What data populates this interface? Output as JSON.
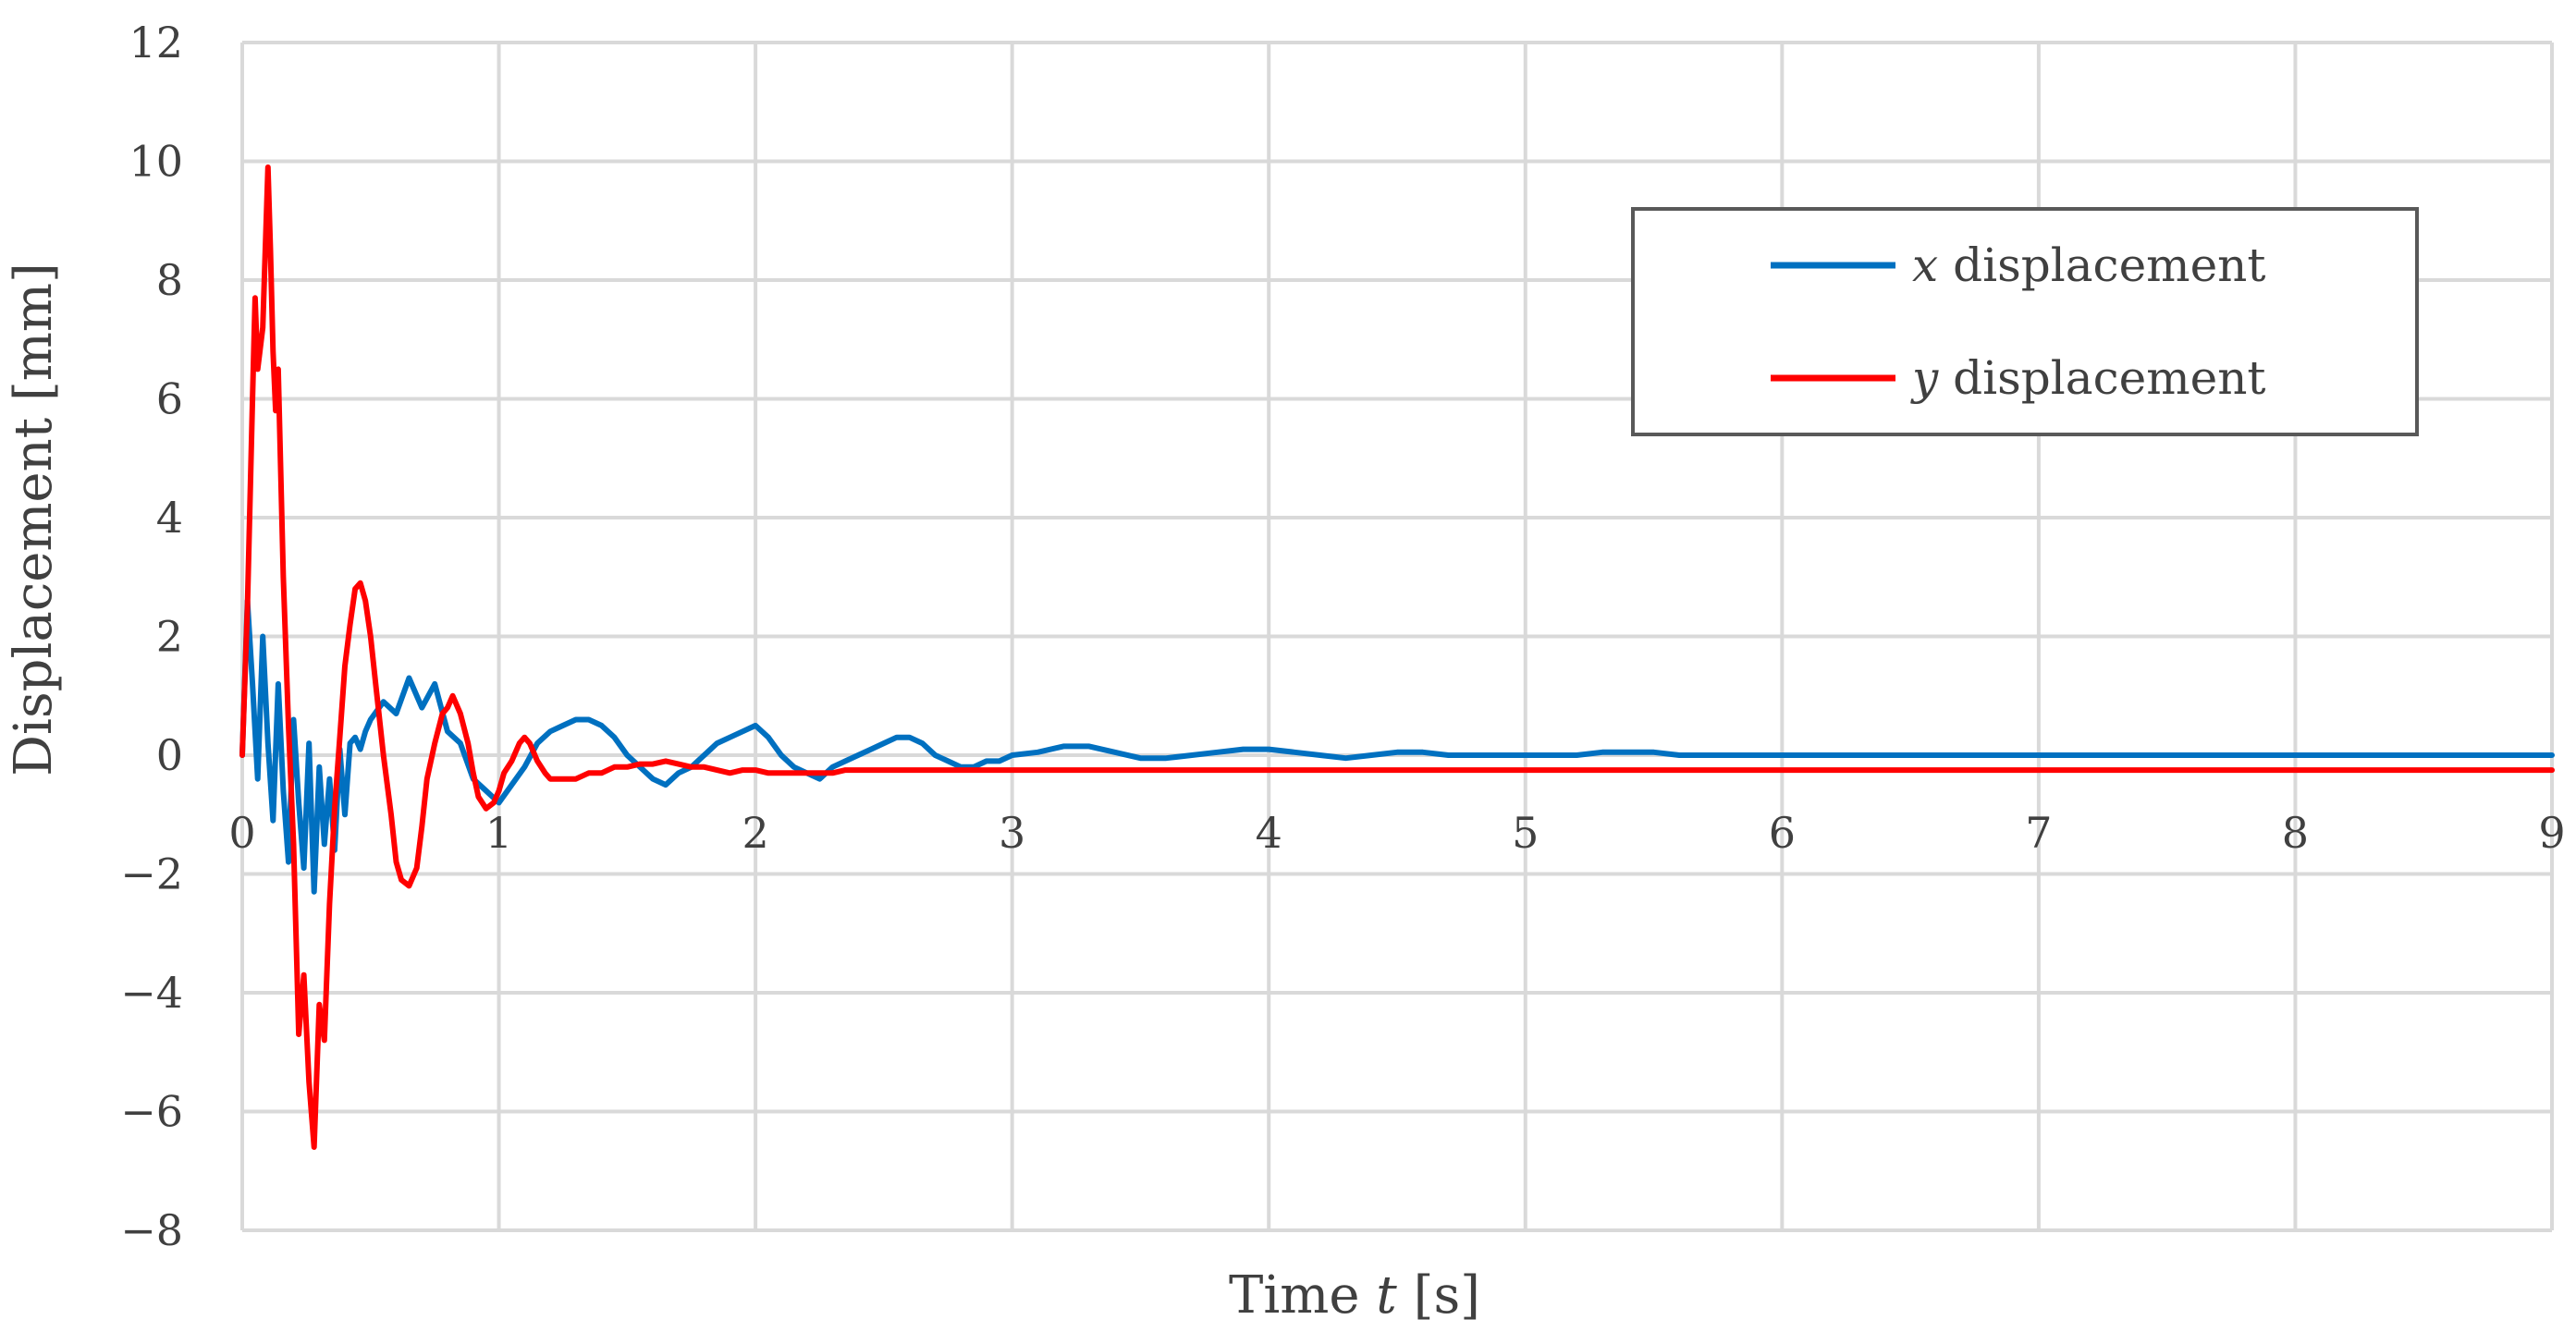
{
  "chart_data": {
    "type": "line",
    "xlabel": {
      "prefix": "Time ",
      "italic": "t",
      "suffix": " [s]"
    },
    "ylabel": "Displacement [mm]",
    "xlim": [
      0,
      9
    ],
    "ylim": [
      -8,
      12
    ],
    "x_ticks": [
      0,
      1,
      2,
      3,
      4,
      5,
      6,
      7,
      8,
      9
    ],
    "x_tick_labels": [
      "0",
      "1",
      "2",
      "3",
      "4",
      "5",
      "6",
      "7",
      "8",
      "9"
    ],
    "y_ticks": [
      -8,
      -6,
      -4,
      -2,
      0,
      2,
      4,
      6,
      8,
      10,
      12
    ],
    "y_tick_labels": [
      "−8",
      "−6",
      "−4",
      "−2",
      "0",
      "2",
      "4",
      "6",
      "8",
      "10",
      "12"
    ],
    "grid": true,
    "legend_position": "top-right",
    "series": [
      {
        "name": "x displacement",
        "name_italic": "x",
        "name_suffix": " displacement",
        "color": "#0070c0",
        "x": [
          0,
          0.02,
          0.04,
          0.06,
          0.08,
          0.1,
          0.12,
          0.14,
          0.16,
          0.18,
          0.2,
          0.22,
          0.24,
          0.26,
          0.28,
          0.3,
          0.32,
          0.34,
          0.36,
          0.38,
          0.4,
          0.42,
          0.44,
          0.46,
          0.48,
          0.5,
          0.55,
          0.6,
          0.65,
          0.7,
          0.75,
          0.8,
          0.85,
          0.9,
          0.95,
          1.0,
          1.05,
          1.1,
          1.15,
          1.2,
          1.25,
          1.3,
          1.35,
          1.4,
          1.45,
          1.5,
          1.55,
          1.6,
          1.65,
          1.7,
          1.75,
          1.8,
          1.85,
          1.9,
          1.95,
          2.0,
          2.05,
          2.1,
          2.15,
          2.2,
          2.25,
          2.3,
          2.35,
          2.4,
          2.45,
          2.5,
          2.55,
          2.6,
          2.65,
          2.7,
          2.75,
          2.8,
          2.85,
          2.9,
          2.95,
          3.0,
          3.1,
          3.2,
          3.3,
          3.4,
          3.5,
          3.6,
          3.7,
          3.8,
          3.9,
          4.0,
          4.1,
          4.2,
          4.3,
          4.4,
          4.5,
          4.6,
          4.7,
          4.8,
          4.9,
          5.0,
          5.1,
          5.2,
          5.3,
          5.4,
          5.5,
          5.6,
          5.7,
          5.8,
          5.9,
          6.0,
          6.5,
          7.0,
          7.5,
          8.0,
          8.5,
          9.0
        ],
        "y": [
          0,
          2.6,
          1.2,
          -0.4,
          2.0,
          0.2,
          -1.1,
          1.2,
          -0.6,
          -1.8,
          0.6,
          -0.8,
          -1.9,
          0.2,
          -2.3,
          -0.2,
          -1.5,
          -0.4,
          -1.6,
          0.1,
          -1.0,
          0.2,
          0.3,
          0.1,
          0.4,
          0.6,
          0.9,
          0.7,
          1.3,
          0.8,
          1.2,
          0.4,
          0.2,
          -0.4,
          -0.6,
          -0.8,
          -0.5,
          -0.2,
          0.2,
          0.4,
          0.5,
          0.6,
          0.6,
          0.5,
          0.3,
          0.0,
          -0.2,
          -0.4,
          -0.5,
          -0.3,
          -0.2,
          0.0,
          0.2,
          0.3,
          0.4,
          0.5,
          0.3,
          0.0,
          -0.2,
          -0.3,
          -0.4,
          -0.2,
          -0.1,
          0.0,
          0.1,
          0.2,
          0.3,
          0.3,
          0.2,
          0.0,
          -0.1,
          -0.2,
          -0.2,
          -0.1,
          -0.1,
          0.0,
          0.05,
          0.15,
          0.15,
          0.05,
          -0.05,
          -0.05,
          0.0,
          0.05,
          0.1,
          0.1,
          0.05,
          0.0,
          -0.05,
          0.0,
          0.05,
          0.05,
          0.0,
          0.0,
          0.0,
          0.0,
          0.0,
          0.0,
          0.05,
          0.05,
          0.05,
          0.0,
          0.0,
          0.0,
          0.0,
          0.0,
          0.0,
          0.0,
          0.0,
          0.0,
          0.0,
          0.0
        ]
      },
      {
        "name": "y displacement",
        "name_italic": "y",
        "name_suffix": " displacement",
        "color": "#ff0000",
        "x": [
          0,
          0.02,
          0.04,
          0.05,
          0.06,
          0.08,
          0.1,
          0.11,
          0.12,
          0.13,
          0.14,
          0.16,
          0.18,
          0.2,
          0.22,
          0.24,
          0.26,
          0.28,
          0.3,
          0.32,
          0.34,
          0.36,
          0.38,
          0.4,
          0.42,
          0.44,
          0.46,
          0.48,
          0.5,
          0.52,
          0.55,
          0.58,
          0.6,
          0.62,
          0.65,
          0.68,
          0.7,
          0.72,
          0.75,
          0.78,
          0.8,
          0.82,
          0.85,
          0.88,
          0.9,
          0.92,
          0.95,
          0.98,
          1.0,
          1.02,
          1.05,
          1.08,
          1.1,
          1.12,
          1.15,
          1.18,
          1.2,
          1.25,
          1.3,
          1.35,
          1.4,
          1.45,
          1.5,
          1.55,
          1.6,
          1.65,
          1.7,
          1.75,
          1.8,
          1.85,
          1.9,
          1.95,
          2.0,
          2.05,
          2.1,
          2.15,
          2.2,
          2.25,
          2.3,
          2.35,
          2.4,
          2.5,
          2.6,
          2.7,
          2.8,
          2.9,
          3.0,
          3.5,
          4.0,
          4.5,
          5.0,
          5.5,
          6.0,
          6.5,
          7.0,
          7.5,
          8.0,
          8.5,
          9.0
        ],
        "y": [
          0,
          2.5,
          6.0,
          7.7,
          6.5,
          7.2,
          9.9,
          8.5,
          6.8,
          5.8,
          6.5,
          3.0,
          0.5,
          -1.5,
          -4.7,
          -3.7,
          -5.5,
          -6.6,
          -4.2,
          -4.8,
          -2.5,
          -0.9,
          0.3,
          1.5,
          2.2,
          2.8,
          2.9,
          2.6,
          2.0,
          1.2,
          0.0,
          -1.0,
          -1.8,
          -2.1,
          -2.2,
          -1.9,
          -1.2,
          -0.4,
          0.2,
          0.7,
          0.8,
          1.0,
          0.7,
          0.2,
          -0.3,
          -0.7,
          -0.9,
          -0.8,
          -0.6,
          -0.3,
          -0.1,
          0.2,
          0.3,
          0.2,
          -0.1,
          -0.3,
          -0.4,
          -0.4,
          -0.4,
          -0.3,
          -0.3,
          -0.2,
          -0.2,
          -0.15,
          -0.15,
          -0.1,
          -0.15,
          -0.2,
          -0.2,
          -0.25,
          -0.3,
          -0.25,
          -0.25,
          -0.3,
          -0.3,
          -0.3,
          -0.3,
          -0.3,
          -0.3,
          -0.25,
          -0.25,
          -0.25,
          -0.25,
          -0.25,
          -0.25,
          -0.25,
          -0.25,
          -0.25,
          -0.25,
          -0.25,
          -0.25,
          -0.25,
          -0.25,
          -0.25,
          -0.25,
          -0.25,
          -0.25,
          -0.25,
          -0.25
        ]
      }
    ]
  }
}
